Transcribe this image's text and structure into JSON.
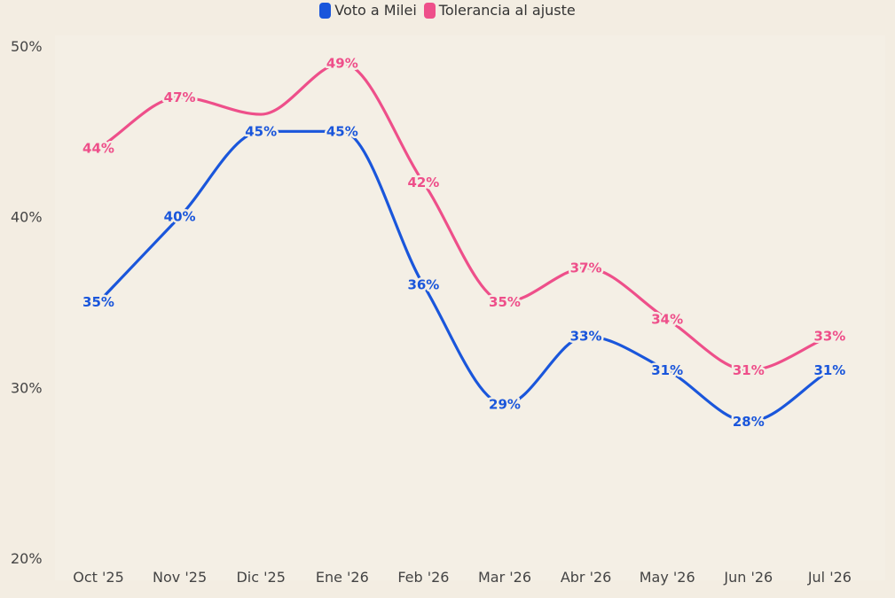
{
  "chart_data": {
    "type": "line",
    "title": "",
    "xlabel": "",
    "ylabel": "",
    "categories": [
      "Oct '25",
      "Nov '25",
      "Dic '25",
      "Ene '26",
      "Feb '26",
      "Mar '26",
      "Abr '26",
      "May '26",
      "Jun '26",
      "Jul '26"
    ],
    "yticks": [
      "50%",
      "40%",
      "30%",
      "20%"
    ],
    "ylim": [
      20,
      50
    ],
    "grid": false,
    "legend_position": "top-center",
    "series": [
      {
        "name": "Voto a Milei",
        "color": "#1a56db",
        "values": [
          35,
          40,
          45,
          45,
          36,
          29,
          33,
          31,
          28,
          31
        ],
        "labels": [
          "35%",
          "40%",
          "45%",
          "45%",
          "36%",
          "29%",
          "33%",
          "31%",
          "28%",
          "31%"
        ]
      },
      {
        "name": "Tolerancia al ajuste",
        "color": "#ee4f8a",
        "values": [
          44,
          47,
          46,
          49,
          42,
          35,
          37,
          34,
          31,
          33
        ],
        "labels": [
          "44%",
          "47%",
          "",
          "49%",
          "42%",
          "35%",
          "37%",
          "34%",
          "31%",
          "33%"
        ]
      }
    ]
  }
}
